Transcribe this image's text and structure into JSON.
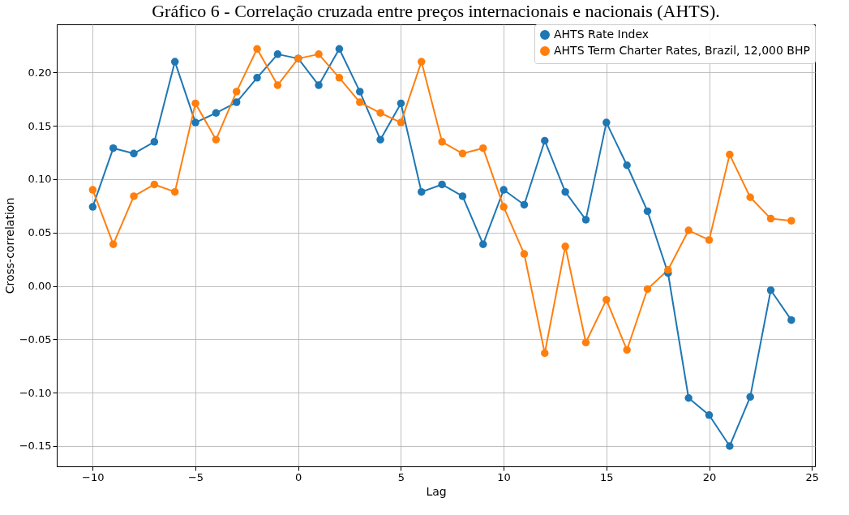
{
  "chart_data": {
    "type": "line",
    "title": "Gráfico 6 - Correlação cruzada entre preços internacionais e nacionais (AHTS).",
    "xlabel": "Lag",
    "ylabel": "Cross-correlation",
    "x": [
      -10,
      -9,
      -8,
      -7,
      -6,
      -5,
      -4,
      -3,
      -2,
      -1,
      0,
      1,
      2,
      3,
      4,
      5,
      6,
      7,
      8,
      9,
      10,
      11,
      12,
      13,
      14,
      15,
      16,
      17,
      18,
      19,
      20,
      21,
      22,
      23,
      24
    ],
    "series": [
      {
        "name": "AHTS Rate Index",
        "color": "#1f77b4",
        "values": [
          0.074,
          0.129,
          0.124,
          0.135,
          0.21,
          0.153,
          0.162,
          0.172,
          0.195,
          0.217,
          0.213,
          0.188,
          0.222,
          0.182,
          0.137,
          0.171,
          0.088,
          0.095,
          0.084,
          0.039,
          0.09,
          0.076,
          0.136,
          0.088,
          0.062,
          0.153,
          0.113,
          0.07,
          0.012,
          -0.105,
          -0.121,
          -0.15,
          -0.104,
          -0.004,
          -0.032
        ]
      },
      {
        "name": "AHTS Term Charter Rates, Brazil, 12,000 BHP",
        "color": "#ff7f0e",
        "values": [
          0.09,
          0.039,
          0.084,
          0.095,
          0.088,
          0.171,
          0.137,
          0.182,
          0.222,
          0.188,
          0.213,
          0.217,
          0.195,
          0.172,
          0.162,
          0.153,
          0.21,
          0.135,
          0.124,
          0.129,
          0.074,
          0.03,
          -0.063,
          0.037,
          -0.053,
          -0.013,
          -0.06,
          -0.003,
          0.015,
          0.052,
          0.043,
          0.123,
          0.083,
          0.063,
          0.061
        ]
      }
    ],
    "xlim": [
      -11.75,
      25.15
    ],
    "xticks": [
      -10,
      -5,
      0,
      5,
      10,
      15,
      20,
      25
    ],
    "ylim": [
      -0.169,
      0.245
    ],
    "yticks": [
      -0.15,
      {
        "value": -0.1,
        "label": "−0.10"
      },
      -0.05,
      {
        "value": 0,
        "label": "0.00"
      },
      0.05,
      {
        "value": 0.1,
        "label": "0.10"
      },
      0.15,
      {
        "value": 0.2,
        "label": "0.20"
      }
    ],
    "grid": true,
    "legend": "top right",
    "marker": "circle",
    "line_style": "solid"
  }
}
